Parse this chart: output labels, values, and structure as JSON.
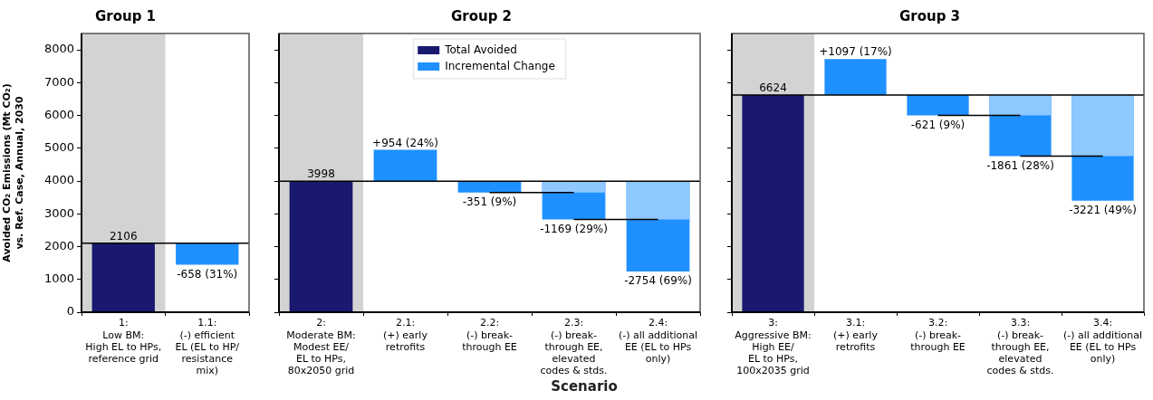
{
  "chart_data": [
    {
      "type": "bar",
      "title": "Group 1",
      "ylabel": "Avoided CO₂ Emissions (Mt CO₂)\nvs. Ref. Case, Annual, 2030",
      "categories": [
        "1:\nLow BM:\nHigh EL to HPs,\nreference grid",
        "1.1:\n(-) efficient\nEL (EL to HP/\nresistance\nmix)"
      ],
      "series": [
        {
          "color": "#191970",
          "values": [
            2106,
            null
          ],
          "base": [
            0,
            null
          ],
          "value_labels": [
            "2106",
            null
          ]
        },
        {
          "color": "#1e90ff",
          "values": [
            null,
            -658
          ],
          "base": [
            null,
            2106
          ],
          "value_labels": [
            null,
            "-658 (31%)"
          ]
        }
      ],
      "ylim": [
        0,
        8500
      ],
      "yticks": [
        0,
        1000,
        2000,
        3000,
        4000,
        5000,
        6000,
        7000,
        8000
      ],
      "bands": [
        {
          "axis": "x",
          "from": "1:\nLow BM:\nHigh EL to HPs,\nreference grid",
          "to": "1:\nLow BM:\nHigh EL to HPs,\nreference grid",
          "color": "#d3d3d3"
        }
      ],
      "ref_lines": [
        {
          "axis": "y",
          "value": 2106,
          "color": "#000000"
        }
      ]
    },
    {
      "type": "bar",
      "title": "Group 2",
      "xlabel": "Scenario",
      "legend": "top",
      "tick_labels": "x",
      "categories": [
        "2:\nModerate BM:\nModest EE/\nEL to HPs,\n80x2050 grid",
        "2.1:\n(+) early\nretrofits",
        "2.2:\n(-) break-\nthrough EE",
        "2.3:\n(-) break-\nthrough EE,\nelevated\ncodes & stds.",
        "2.4:\n(-) all additional\nEE (EL to HPs\nonly)"
      ],
      "series": [
        {
          "name": "Total Avoided",
          "color": "#191970",
          "values": [
            3998,
            null,
            null,
            null,
            null
          ],
          "base": [
            0,
            null,
            null,
            null,
            null
          ],
          "value_labels": [
            "3998",
            null,
            null,
            null,
            null
          ]
        },
        {
          "name": "Incremental Change",
          "color": "#1e90ff",
          "values": [
            null,
            954,
            -351,
            -1169,
            -2754
          ],
          "base": [
            null,
            3998,
            3998,
            3998,
            3998
          ],
          "value_labels": [
            null,
            "+954 (24%)",
            "-351 (9%)",
            "-1169 (29%)",
            "-2754 (69%)"
          ]
        },
        {
          "color": "#8fc8ff",
          "values": [
            null,
            null,
            null,
            -351,
            -1169
          ],
          "base": [
            null,
            null,
            null,
            3998,
            3998
          ]
        },
        {
          "type": "line",
          "color": "#000000",
          "values": [
            null,
            null,
            3647,
            3647,
            null
          ]
        },
        {
          "type": "line",
          "color": "#000000",
          "values": [
            null,
            null,
            null,
            2829,
            2829
          ]
        }
      ],
      "ylim": [
        0,
        8500
      ],
      "yticks": [
        0,
        1000,
        2000,
        3000,
        4000,
        5000,
        6000,
        7000,
        8000
      ],
      "bands": [
        {
          "axis": "x",
          "from": "2:\nModerate BM:\nModest EE/\nEL to HPs,\n80x2050 grid",
          "to": "2:\nModerate BM:\nModest EE/\nEL to HPs,\n80x2050 grid",
          "color": "#d3d3d3"
        }
      ],
      "ref_lines": [
        {
          "axis": "y",
          "value": 3998,
          "color": "#000000"
        }
      ]
    },
    {
      "type": "bar",
      "title": "Group 3",
      "tick_labels": "x",
      "categories": [
        "3:\nAggressive BM:\nHigh EE/\nEL to HPs,\n100x2035 grid",
        "3.1:\n(+) early\nretrofits",
        "3.2:\n(-) break-\nthrough EE",
        "3.3:\n(-) break-\nthrough EE,\nelevated\ncodes & stds.",
        "3.4:\n(-) all additional\nEE (EL to HPs\nonly)"
      ],
      "series": [
        {
          "color": "#191970",
          "values": [
            6624,
            null,
            null,
            null,
            null
          ],
          "base": [
            0,
            null,
            null,
            null,
            null
          ],
          "value_labels": [
            "6624",
            null,
            null,
            null,
            null
          ]
        },
        {
          "color": "#1e90ff",
          "values": [
            null,
            1097,
            -621,
            -1861,
            -3221
          ],
          "base": [
            null,
            6624,
            6624,
            6624,
            6624
          ],
          "value_labels": [
            null,
            "+1097 (17%)",
            "-621 (9%)",
            "-1861 (28%)",
            "-3221 (49%)"
          ]
        },
        {
          "color": "#8fc8ff",
          "values": [
            null,
            null,
            null,
            -621,
            -1861
          ],
          "base": [
            null,
            null,
            null,
            6624,
            6624
          ]
        },
        {
          "type": "line",
          "color": "#000000",
          "values": [
            null,
            null,
            6003,
            6003,
            null
          ]
        },
        {
          "type": "line",
          "color": "#000000",
          "values": [
            null,
            null,
            null,
            4763,
            4763
          ]
        }
      ],
      "ylim": [
        0,
        8500
      ],
      "yticks": [
        0,
        1000,
        2000,
        3000,
        4000,
        5000,
        6000,
        7000,
        8000
      ],
      "bands": [
        {
          "axis": "x",
          "from": "3:\nAggressive BM:\nHigh EE/\nEL to HPs,\n100x2035 grid",
          "to": "3:\nAggressive BM:\nHigh EE/\nEL to HPs,\n100x2035 grid",
          "color": "#d3d3d3"
        }
      ],
      "ref_lines": [
        {
          "axis": "y",
          "value": 6624,
          "color": "#000000"
        }
      ]
    }
  ]
}
